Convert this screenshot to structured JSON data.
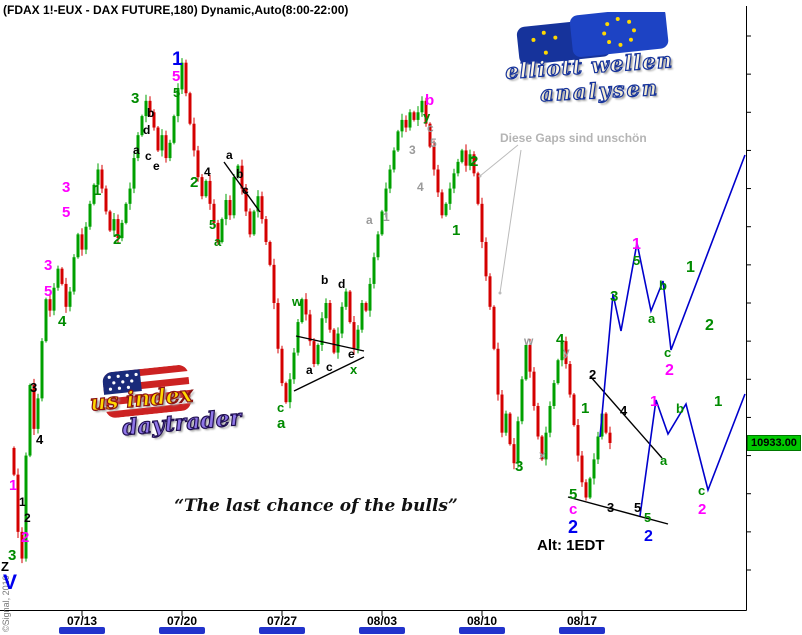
{
  "window": {
    "title": "(FDAX 1!-EUX - DAX FUTURE,180) Dynamic,Auto(8:00-22:00)"
  },
  "notes": {
    "gaps_note": "Diese Gaps sind unschön",
    "quote": "“The last chance of the bulls”",
    "alt_label": "Alt: 1EDT",
    "copyright": "©Signal, 2010"
  },
  "logos": {
    "eu": {
      "line1": "elliott wellen",
      "line2": "analysen"
    },
    "us": {
      "line1": "us index",
      "line2": "daytrader"
    }
  },
  "colors": {
    "background": "#ffffff",
    "up": "#00A000",
    "down": "#D40000",
    "projection": "#0000cc",
    "trendline": "#000000",
    "gap_arrow": "#bbbbbb",
    "axis": "#000000",
    "date_bar": "#2233cc",
    "last_price_bg": "#00c800"
  },
  "label_colors": {
    "magenta": "#ff00ff",
    "green": "#008b00",
    "blue": "#0000ee",
    "black": "#000000",
    "gray": "#9a9a9a"
  },
  "chart_data": {
    "type": "candlestick",
    "title": "FDAX 1!-EUX DAX FUTURE 180min Dynamic Auto(8:00-22:00)",
    "timeframe_minutes": 180,
    "bars_per_day": 5,
    "first_open": 10920,
    "closes": [
      10850,
      10700,
      10630,
      10900,
      11085,
      10970,
      11050,
      11200,
      11310,
      11280,
      11340,
      11390,
      11350,
      11290,
      11330,
      11420,
      11480,
      11440,
      11500,
      11560,
      11610,
      11650,
      11600,
      11540,
      11490,
      11520,
      11470,
      11510,
      11560,
      11600,
      11680,
      11740,
      11790,
      11830,
      11800,
      11760,
      11700,
      11740,
      11680,
      11720,
      11790,
      11860,
      11930,
      11850,
      11770,
      11700,
      11630,
      11580,
      11620,
      11560,
      11510,
      11460,
      11520,
      11570,
      11530,
      11630,
      11660,
      11600,
      11540,
      11480,
      11540,
      11580,
      11520,
      11460,
      11400,
      11300,
      11180,
      11090,
      11040,
      11100,
      11170,
      11250,
      11310,
      11270,
      11200,
      11140,
      11190,
      11260,
      11300,
      11230,
      11170,
      11220,
      11290,
      11330,
      11250,
      11180,
      11230,
      11300,
      11280,
      11350,
      11420,
      11480,
      11540,
      11600,
      11650,
      11700,
      11750,
      11780,
      11760,
      11800,
      11780,
      11800,
      11830,
      11770,
      11710,
      11650,
      11590,
      11530,
      11560,
      11600,
      11640,
      11670,
      11700,
      11660,
      11690,
      11640,
      11560,
      11460,
      11370,
      11290,
      11180,
      11060,
      10960,
      11010,
      10930,
      10880,
      10990,
      11100,
      11190,
      11120,
      11030,
      10950,
      10890,
      10960,
      11030,
      11090,
      11150,
      11200,
      11140,
      11060,
      10980,
      10900,
      10830,
      10790,
      10840,
      10890,
      10950,
      11010,
      10960,
      10933
    ],
    "x_ticks": [
      {
        "label": "07/13",
        "day": 3
      },
      {
        "label": "07/20",
        "day": 8
      },
      {
        "label": "07/27",
        "day": 13
      },
      {
        "label": "08/03",
        "day": 18
      },
      {
        "label": "08/10",
        "day": 23
      },
      {
        "label": "08/17",
        "day": 28
      }
    ],
    "y_axis": {
      "min": 10600,
      "max": 12000,
      "step": 100
    },
    "last_price": "10933.00",
    "last_price_value": 10933,
    "wave_labels": [
      [
        30,
        381,
        "3",
        "black",
        13
      ],
      [
        36,
        433,
        "4",
        "black",
        13
      ],
      [
        9,
        478,
        "1",
        "magenta",
        15
      ],
      [
        19,
        496,
        "1",
        "black",
        12
      ],
      [
        24,
        512,
        "2",
        "black",
        12
      ],
      [
        21,
        530,
        "2",
        "magenta",
        15
      ],
      [
        8,
        548,
        "3",
        "green",
        15
      ],
      [
        1,
        560,
        "Z",
        "black",
        13
      ],
      [
        3,
        572,
        "V",
        "blue",
        21
      ],
      [
        44,
        258,
        "3",
        "magenta",
        15
      ],
      [
        44,
        284,
        "5",
        "magenta",
        15
      ],
      [
        62,
        180,
        "3",
        "magenta",
        15
      ],
      [
        62,
        205,
        "5",
        "magenta",
        15
      ],
      [
        58,
        314,
        "4",
        "green",
        15
      ],
      [
        93,
        183,
        "1",
        "green",
        15
      ],
      [
        113,
        232,
        "2",
        "green",
        15
      ],
      [
        131,
        91,
        "3",
        "green",
        15
      ],
      [
        147,
        107,
        "b",
        "black",
        12
      ],
      [
        143,
        124,
        "d",
        "black",
        12
      ],
      [
        133,
        144,
        "a",
        "black",
        12
      ],
      [
        145,
        150,
        "c",
        "black",
        12
      ],
      [
        153,
        160,
        "e",
        "black",
        12
      ],
      [
        172,
        50,
        "1",
        "blue",
        19
      ],
      [
        172,
        69,
        "5",
        "magenta",
        15
      ],
      [
        173,
        86,
        "5",
        "green",
        13
      ],
      [
        190,
        175,
        "2",
        "green",
        15
      ],
      [
        204,
        166,
        "4",
        "black",
        12
      ],
      [
        226,
        149,
        "a",
        "black",
        12
      ],
      [
        236,
        168,
        "b",
        "black",
        12
      ],
      [
        242,
        184,
        "c",
        "black",
        12
      ],
      [
        209,
        218,
        "5",
        "green",
        13
      ],
      [
        214,
        235,
        "a",
        "green",
        13
      ],
      [
        292,
        295,
        "w",
        "green",
        13
      ],
      [
        277,
        401,
        "c",
        "green",
        13
      ],
      [
        277,
        416,
        "a",
        "green",
        15
      ],
      [
        306,
        364,
        "a",
        "black",
        12
      ],
      [
        321,
        274,
        "b",
        "black",
        12
      ],
      [
        326,
        361,
        "c",
        "black",
        12
      ],
      [
        338,
        278,
        "d",
        "black",
        12
      ],
      [
        348,
        348,
        "e",
        "black",
        12
      ],
      [
        350,
        363,
        "x",
        "green",
        13
      ],
      [
        366,
        214,
        "a",
        "gray",
        12
      ],
      [
        383,
        211,
        "1",
        "gray",
        12
      ],
      [
        409,
        144,
        "3",
        "gray",
        12
      ],
      [
        417,
        181,
        "4",
        "gray",
        12
      ],
      [
        425,
        93,
        "b",
        "magenta",
        15
      ],
      [
        423,
        110,
        "y",
        "green",
        13
      ],
      [
        427,
        122,
        "c",
        "gray",
        12
      ],
      [
        430,
        137,
        "5",
        "gray",
        12
      ],
      [
        452,
        223,
        "1",
        "green",
        15
      ],
      [
        470,
        154,
        "2",
        "green",
        15
      ],
      [
        515,
        459,
        "3",
        "green",
        15
      ],
      [
        524,
        335,
        "w",
        "gray",
        12
      ],
      [
        539,
        449,
        "x",
        "gray",
        12
      ],
      [
        556,
        332,
        "4",
        "green",
        15
      ],
      [
        563,
        346,
        "y",
        "gray",
        12
      ],
      [
        581,
        401,
        "1",
        "green",
        15
      ],
      [
        589,
        368,
        "2",
        "black",
        13
      ],
      [
        569,
        487,
        "5",
        "green",
        15
      ],
      [
        569,
        502,
        "c",
        "magenta",
        15
      ],
      [
        568,
        518,
        "2",
        "blue",
        18
      ],
      [
        607,
        501,
        "3",
        "black",
        13
      ],
      [
        634,
        501,
        "5",
        "black",
        13
      ],
      [
        620,
        404,
        "4",
        "black",
        13
      ],
      [
        610,
        289,
        "3",
        "green",
        15
      ],
      [
        632,
        237,
        "1",
        "magenta",
        16
      ],
      [
        633,
        254,
        "5",
        "green",
        13
      ],
      [
        648,
        312,
        "a",
        "green",
        13
      ],
      [
        659,
        279,
        "b",
        "green",
        13
      ],
      [
        664,
        346,
        "c",
        "green",
        13
      ],
      [
        665,
        363,
        "2",
        "magenta",
        16
      ],
      [
        686,
        260,
        "1",
        "green",
        16
      ],
      [
        705,
        318,
        "2",
        "green",
        16
      ],
      [
        650,
        394,
        "1",
        "magenta",
        15
      ],
      [
        676,
        402,
        "b",
        "green",
        13
      ],
      [
        660,
        454,
        "a",
        "green",
        13
      ],
      [
        698,
        484,
        "c",
        "green",
        13
      ],
      [
        698,
        502,
        "2",
        "magenta",
        15
      ],
      [
        714,
        394,
        "1",
        "green",
        15
      ],
      [
        644,
        511,
        "5",
        "green",
        13
      ],
      [
        644,
        529,
        "2",
        "blue",
        16
      ]
    ],
    "trendlines": [
      [
        224,
        162,
        260,
        212
      ],
      [
        296,
        336,
        364,
        351
      ],
      [
        294,
        391,
        364,
        357
      ],
      [
        590,
        376,
        662,
        458
      ],
      [
        568,
        497,
        668,
        524
      ]
    ],
    "projections": [
      {
        "points": [
          [
            600,
            437
          ],
          [
            613,
            294
          ],
          [
            621,
            331
          ],
          [
            637,
            243
          ],
          [
            651,
            311
          ],
          [
            663,
            281
          ],
          [
            671,
            350
          ],
          [
            745,
            155
          ]
        ]
      },
      {
        "points": [
          [
            640,
            516
          ],
          [
            656,
            400
          ],
          [
            668,
            434
          ],
          [
            686,
            404
          ],
          [
            708,
            490
          ],
          [
            745,
            394
          ]
        ]
      }
    ],
    "gap_arrows": [
      [
        518,
        145,
        480,
        176
      ],
      [
        521,
        150,
        500,
        293
      ]
    ]
  }
}
